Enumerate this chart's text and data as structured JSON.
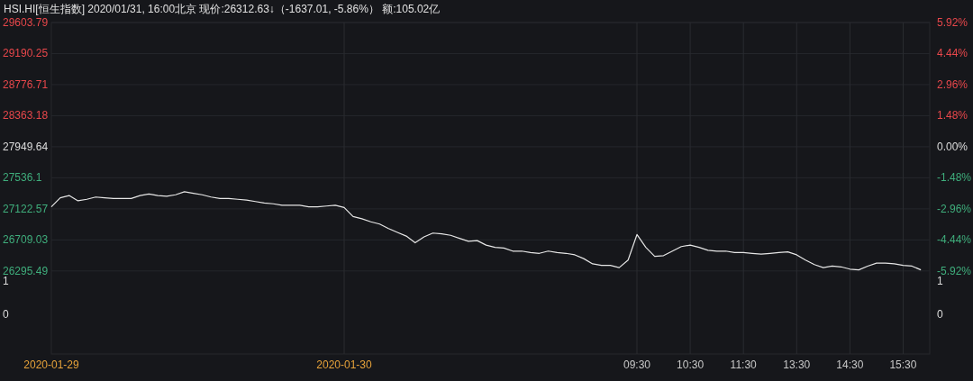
{
  "chart_data": {
    "type": "line",
    "title": "HSI.HI[恒生指数]  2020/01/31, 16:00北京 现价:26312.63↓（-1637.01, -5.86%） 额:105.02亿",
    "categories": [
      "2020-01-29",
      null,
      null,
      null,
      null,
      null,
      null,
      null,
      null,
      null,
      null,
      null,
      null,
      null,
      null,
      null,
      null,
      null,
      null,
      null,
      null,
      null,
      null,
      null,
      null,
      null,
      null,
      null,
      null,
      null,
      null,
      null,
      null,
      "2020-01-30",
      null,
      null,
      null,
      null,
      null,
      null,
      null,
      null,
      null,
      null,
      null,
      null,
      null,
      null,
      null,
      null,
      null,
      null,
      null,
      null,
      null,
      null,
      null,
      null,
      null,
      null,
      null,
      null,
      null,
      null,
      null,
      null,
      "09:30",
      null,
      null,
      null,
      null,
      null,
      "10:30",
      null,
      null,
      null,
      null,
      null,
      "11:30",
      null,
      null,
      null,
      null,
      null,
      "13:30",
      null,
      null,
      null,
      null,
      null,
      "14:30",
      null,
      null,
      null,
      null,
      null,
      "15:30",
      null,
      null
    ],
    "series": [
      {
        "color": "#e6e6e6",
        "values": [
          27150,
          27270,
          27300,
          27230,
          27250,
          27280,
          27270,
          27260,
          27260,
          27260,
          27300,
          27320,
          27300,
          27290,
          27310,
          27350,
          27330,
          27310,
          27280,
          27260,
          27260,
          27250,
          27240,
          27220,
          27200,
          27190,
          27170,
          27170,
          27170,
          27150,
          27150,
          27160,
          27170,
          27140,
          27020,
          26990,
          26950,
          26920,
          26860,
          26810,
          26760,
          26670,
          26750,
          26800,
          26790,
          26770,
          26730,
          26690,
          26700,
          26640,
          26610,
          26600,
          26560,
          26560,
          26540,
          26530,
          26560,
          26540,
          26530,
          26510,
          26460,
          26390,
          26370,
          26370,
          26340,
          26440,
          26780,
          26610,
          26490,
          26500,
          26560,
          26620,
          26640,
          26610,
          26570,
          26560,
          26560,
          26540,
          26540,
          26530,
          26520,
          26530,
          26540,
          26550,
          26510,
          26440,
          26380,
          26340,
          26360,
          26350,
          26320,
          26310,
          26360,
          26400,
          26400,
          26390,
          26370,
          26360,
          26310
        ]
      }
    ],
    "ylim": [
      25190,
      29603.79
    ],
    "yticks": [
      26295.49,
      26709.03,
      27122.57,
      27536.1,
      27949.64,
      28363.18,
      28776.71,
      29190.25,
      29603.79
    ],
    "y2lim": [
      -9.87,
      5.92
    ],
    "y2ticks": [
      {
        "value": -5.92,
        "label": "-5.92%"
      },
      {
        "value": -4.44,
        "label": "-4.44%"
      },
      {
        "value": -2.96,
        "label": "-2.96%"
      },
      {
        "value": -1.48,
        "label": "-1.48%"
      },
      {
        "value": 0,
        "label": "0.00%"
      },
      {
        "value": 1.48,
        "label": "1.48%"
      },
      {
        "value": 2.96,
        "label": "2.96%"
      },
      {
        "value": 4.44,
        "label": "4.44%"
      },
      {
        "value": 5.92,
        "label": "5.92%"
      }
    ],
    "annotations": [
      "1",
      "0",
      "1",
      "0"
    ],
    "grid": true
  }
}
